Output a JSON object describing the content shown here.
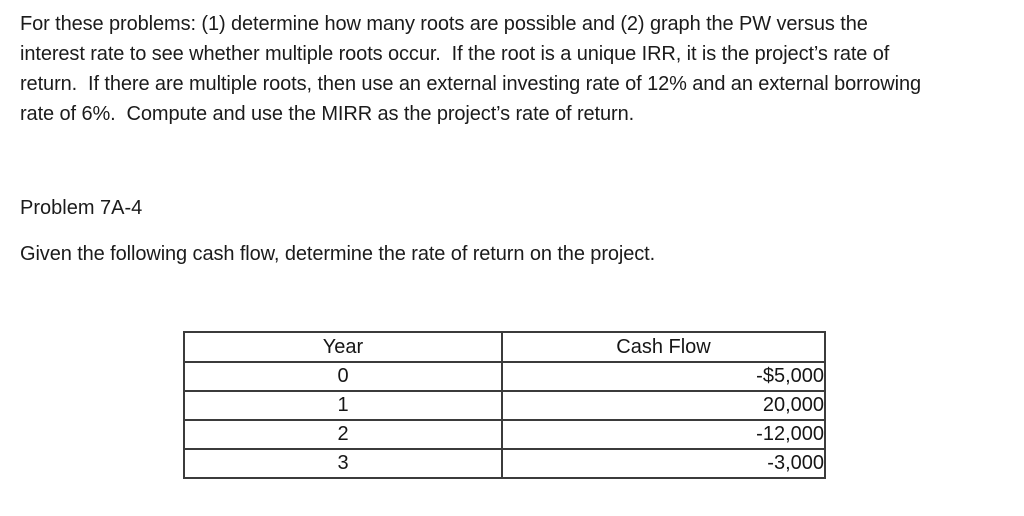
{
  "page": {
    "background": "#ffffff",
    "text_color": "#1b1b1b",
    "table_border_color": "#3b3b3b"
  },
  "intro": {
    "lines": [
      "For these problems: (1) determine how many roots are possible and (2) graph the PW versus the",
      "interest rate to see whether multiple roots occur.  If the root is a unique IRR, it is the project’s rate of",
      "return.  If there are multiple roots, then use an external investing rate of 12% and an external borrowing",
      "rate of 6%.  Compute and use the MIRR as the project’s rate of return."
    ]
  },
  "problem": {
    "title": "Problem 7A-4",
    "prompt": "Given the following cash flow, determine the rate of return on the project."
  },
  "table": {
    "headers": [
      "Year",
      "Cash Flow"
    ],
    "rows": [
      {
        "year": "0",
        "cash_flow": "-$5,000"
      },
      {
        "year": "1",
        "cash_flow": "20,000"
      },
      {
        "year": "2",
        "cash_flow": "-12,000"
      },
      {
        "year": "3",
        "cash_flow": "-3,000"
      }
    ]
  }
}
